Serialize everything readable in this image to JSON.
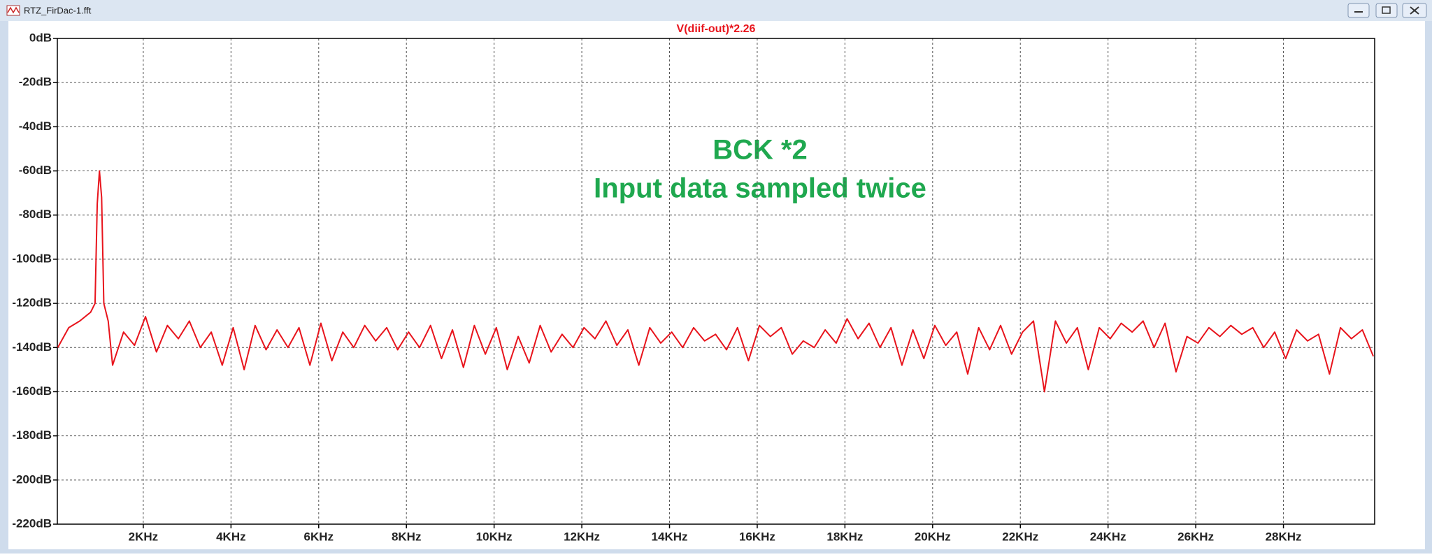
{
  "window": {
    "title": "RTZ_FirDac-1.fft"
  },
  "chart_data": {
    "type": "line",
    "annotations": [
      "BCK *2",
      "Input data sampled twice"
    ],
    "x": [
      0.05,
      0.3,
      0.55,
      0.8,
      0.9,
      0.95,
      1.0,
      1.05,
      1.1,
      1.2,
      1.3,
      1.55,
      1.8,
      2.05,
      2.3,
      2.55,
      2.8,
      3.05,
      3.3,
      3.55,
      3.8,
      4.05,
      4.3,
      4.55,
      4.8,
      5.05,
      5.3,
      5.55,
      5.8,
      6.05,
      6.3,
      6.55,
      6.8,
      7.05,
      7.3,
      7.55,
      7.8,
      8.05,
      8.3,
      8.55,
      8.8,
      9.05,
      9.3,
      9.55,
      9.8,
      10.05,
      10.3,
      10.55,
      10.8,
      11.05,
      11.3,
      11.55,
      11.8,
      12.05,
      12.3,
      12.55,
      12.8,
      13.05,
      13.3,
      13.55,
      13.8,
      14.05,
      14.3,
      14.55,
      14.8,
      15.05,
      15.3,
      15.55,
      15.8,
      16.05,
      16.3,
      16.55,
      16.8,
      17.05,
      17.3,
      17.55,
      17.8,
      18.05,
      18.3,
      18.55,
      18.8,
      19.05,
      19.3,
      19.55,
      19.8,
      20.05,
      20.3,
      20.55,
      20.8,
      21.05,
      21.3,
      21.55,
      21.8,
      22.05,
      22.3,
      22.55,
      22.8,
      23.05,
      23.3,
      23.55,
      23.8,
      24.05,
      24.3,
      24.55,
      24.8,
      25.05,
      25.3,
      25.55,
      25.8,
      26.05,
      26.3,
      26.55,
      26.8,
      27.05,
      27.3,
      27.55,
      27.8,
      28.05,
      28.3,
      28.55,
      28.8,
      29.05,
      29.3,
      29.55,
      29.8,
      30.05
    ],
    "series": [
      {
        "name": "V(diif-out)*2.26",
        "color": "#e8141c",
        "values": [
          -140,
          -131,
          -128,
          -124,
          -120,
          -75,
          -60,
          -72,
          -120,
          -128,
          -148,
          -133,
          -139,
          -126,
          -142,
          -130,
          -136,
          -128,
          -140,
          -133,
          -148,
          -131,
          -150,
          -130,
          -141,
          -132,
          -140,
          -131,
          -148,
          -129,
          -146,
          -133,
          -140,
          -130,
          -137,
          -131,
          -141,
          -133,
          -140,
          -130,
          -145,
          -132,
          -149,
          -130,
          -143,
          -131,
          -150,
          -135,
          -147,
          -130,
          -142,
          -134,
          -140,
          -131,
          -136,
          -128,
          -139,
          -132,
          -148,
          -131,
          -138,
          -133,
          -140,
          -131,
          -137,
          -134,
          -141,
          -131,
          -146,
          -130,
          -135,
          -131,
          -143,
          -137,
          -140,
          -132,
          -138,
          -127,
          -136,
          -129,
          -140,
          -131,
          -148,
          -132,
          -145,
          -130,
          -139,
          -133,
          -152,
          -131,
          -141,
          -130,
          -143,
          -133,
          -128,
          -160,
          -128,
          -138,
          -131,
          -150,
          -131,
          -136,
          -129,
          -133,
          -128,
          -140,
          -129,
          -151,
          -135,
          -138,
          -131,
          -135,
          -130,
          -134,
          -131,
          -140,
          -133,
          -145,
          -132,
          -137,
          -134,
          -152,
          -131,
          -136,
          -132,
          -144
        ]
      }
    ],
    "xlim": [
      0.04,
      30.08
    ],
    "ylim": [
      -220,
      0
    ],
    "xticks": [
      {
        "value": 2,
        "label": "2KHz"
      },
      {
        "value": 4,
        "label": "4KHz"
      },
      {
        "value": 6,
        "label": "6KHz"
      },
      {
        "value": 8,
        "label": "8KHz"
      },
      {
        "value": 10,
        "label": "10KHz"
      },
      {
        "value": 12,
        "label": "12KHz"
      },
      {
        "value": 14,
        "label": "14KHz"
      },
      {
        "value": 16,
        "label": "16KHz"
      },
      {
        "value": 18,
        "label": "18KHz"
      },
      {
        "value": 20,
        "label": "20KHz"
      },
      {
        "value": 22,
        "label": "22KHz"
      },
      {
        "value": 24,
        "label": "24KHz"
      },
      {
        "value": 26,
        "label": "26KHz"
      },
      {
        "value": 28,
        "label": "28KHz"
      }
    ],
    "yticks": [
      {
        "value": 0,
        "label": "0dB"
      },
      {
        "value": -20,
        "label": "-20dB"
      },
      {
        "value": -40,
        "label": "-40dB"
      },
      {
        "value": -60,
        "label": "-60dB"
      },
      {
        "value": -80,
        "label": "-80dB"
      },
      {
        "value": -100,
        "label": "-100dB"
      },
      {
        "value": -120,
        "label": "-120dB"
      },
      {
        "value": -140,
        "label": "-140dB"
      },
      {
        "value": -160,
        "label": "-160dB"
      },
      {
        "value": -180,
        "label": "-180dB"
      },
      {
        "value": -200,
        "label": "-200dB"
      },
      {
        "value": -220,
        "label": "-220dB"
      }
    ],
    "grid": true,
    "annotation_color": "#1fa84f"
  }
}
